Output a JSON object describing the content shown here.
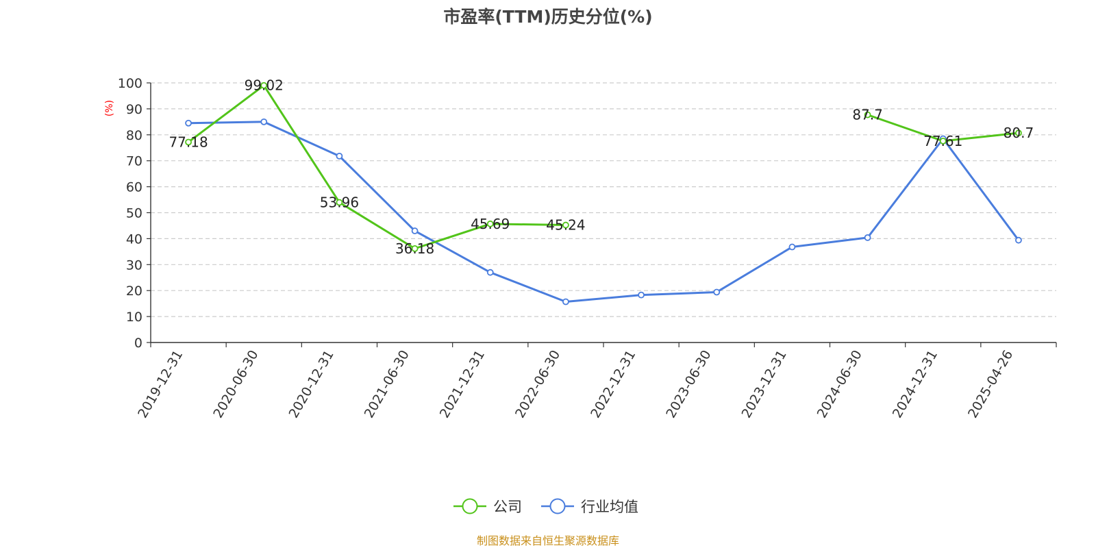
{
  "chart_data": {
    "type": "line",
    "title": "市盈率(TTM)历史分位(%)",
    "ylabel": "(%)",
    "ylim": [
      0,
      100
    ],
    "yticks": [
      0,
      10,
      20,
      30,
      40,
      50,
      60,
      70,
      80,
      90,
      100
    ],
    "categories": [
      "2019-12-31",
      "2020-06-30",
      "2020-12-31",
      "2021-06-30",
      "2021-12-31",
      "2022-06-30",
      "2022-12-31",
      "2023-06-30",
      "2023-12-31",
      "2024-06-30",
      "2024-12-31",
      "2025-04-26"
    ],
    "series": [
      {
        "name": "公司",
        "color": "#52c41a",
        "values": [
          77.18,
          99.02,
          53.96,
          36.18,
          45.69,
          45.24,
          null,
          null,
          null,
          87.7,
          77.61,
          80.7
        ],
        "labels": [
          "77.18",
          "99.02",
          "53.96",
          "36.18",
          "45.69",
          "45.24",
          null,
          null,
          null,
          "87.7",
          "77.61",
          "80.7"
        ]
      },
      {
        "name": "行业均值",
        "color": "#4a7ddd",
        "values": [
          84.5,
          85.0,
          71.8,
          43.0,
          27.0,
          15.7,
          18.3,
          19.4,
          36.8,
          40.4,
          78.5,
          39.4
        ]
      }
    ],
    "grid": true,
    "legend_position": "bottom-center",
    "source_note": "制图数据来自恒生聚源数据库"
  }
}
